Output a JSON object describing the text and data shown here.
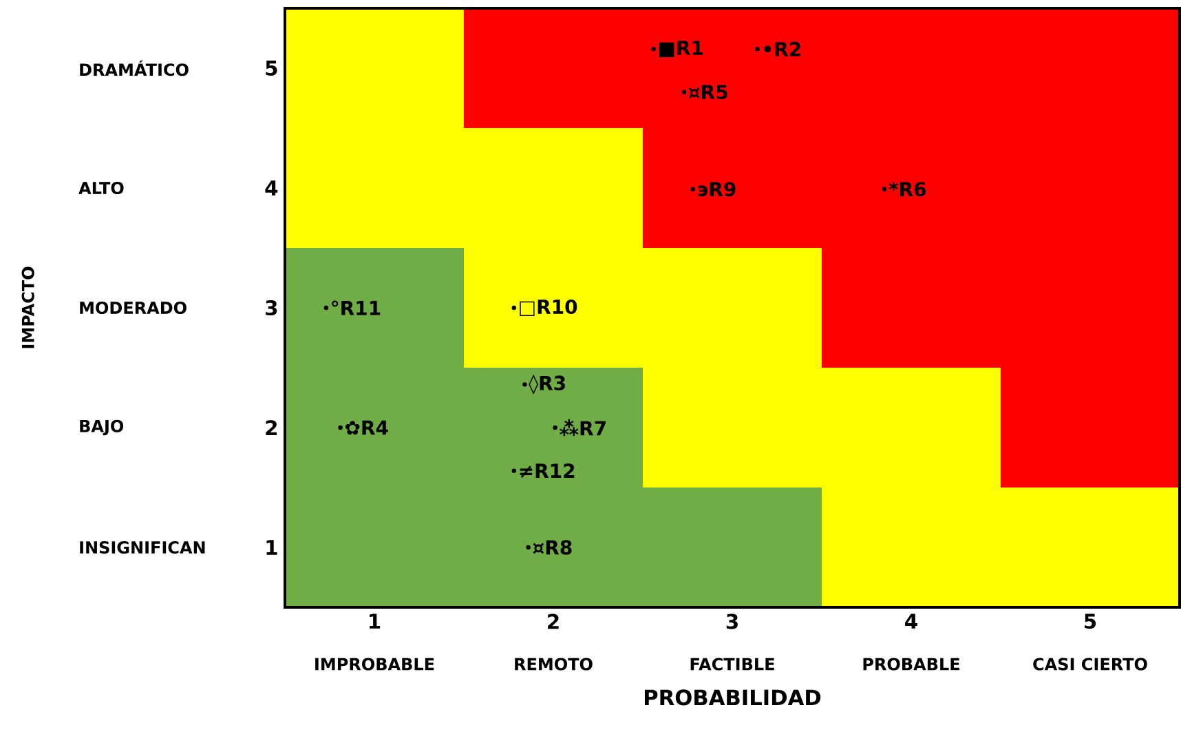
{
  "chart_data": {
    "type": "bar",
    "x": [
      1,
      2,
      3,
      4,
      5
    ],
    "xlim": [
      0.5,
      5.5
    ],
    "ylim": [
      0.5,
      5.5
    ],
    "xticks": [
      1,
      2,
      3,
      4,
      5
    ],
    "yticks": [
      1,
      2,
      3,
      4,
      5
    ],
    "series": [
      {
        "color": "#70ad47",
        "base": [
          0.5,
          0.5,
          0.5,
          null,
          null
        ],
        "values": [
          3,
          2,
          1,
          null,
          null
        ]
      },
      {
        "color": "#ffff00",
        "base": [
          3.5,
          2.5,
          1.5,
          0.5,
          0.5
        ],
        "values": [
          2,
          2,
          2,
          2,
          1
        ]
      },
      {
        "color": "#ff0000",
        "base": [
          null,
          4.5,
          3.5,
          2.5,
          1.5
        ],
        "values": [
          null,
          1,
          2,
          3,
          4
        ]
      },
      {
        "type": "scatter",
        "color": "#000000",
        "x": [
          2.56,
          3.14,
          2.73,
          2.78,
          3.85,
          0.73,
          1.78,
          1.84,
          0.81,
          2.01,
          1.78,
          1.86
        ],
        "values": [
          5.16,
          5.16,
          4.8,
          3.99,
          3.99,
          3.0,
          3.0,
          2.36,
          2.0,
          2.0,
          1.64,
          1.0
        ],
        "value_labels": [
          "■R1",
          "•R2",
          "¤R5",
          "эR9",
          "*R6",
          "°R11",
          "□R10",
          "◊R3",
          "✿R4",
          "⁂R7",
          "≠R12",
          "¤R8"
        ]
      }
    ],
    "xlabel": "PROBABILIDAD",
    "annotations": [
      "IMPROBABLE",
      "REMOTO",
      "FACTIBLE",
      "PROBABLE",
      "CASI CIERTO",
      "DRAMÁTICO",
      "ALTO",
      "MODERADO",
      "BAJO",
      "INSIGNIFICAN",
      "IMPACTO"
    ]
  }
}
